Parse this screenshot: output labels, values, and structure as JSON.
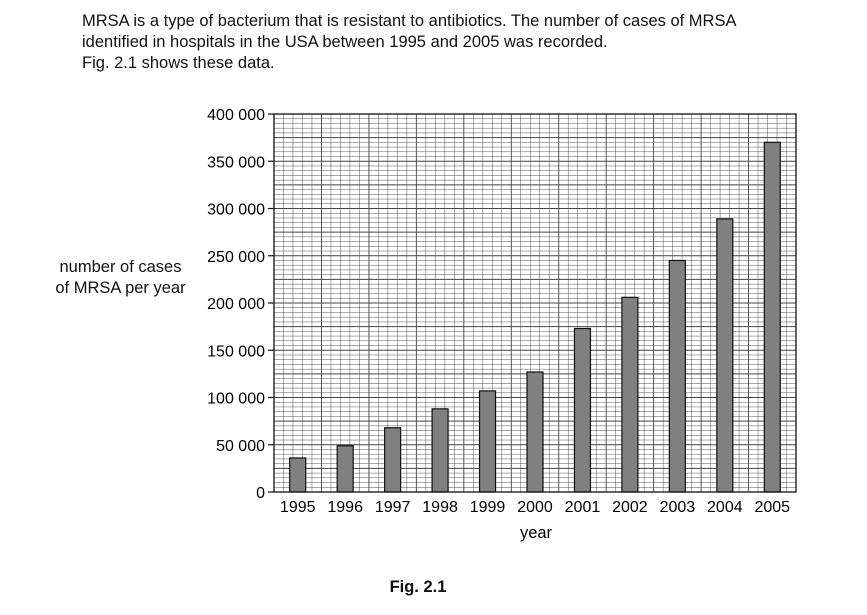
{
  "intro": {
    "line1": "MRSA is a type of bacterium that is resistant to antibiotics. The number of cases of MRSA",
    "line2": "identified in hospitals in the USA between 1995 and 2005 was recorded.",
    "line3": "Fig. 2.1 shows these data."
  },
  "figure_caption": "Fig. 2.1",
  "chart_data": {
    "type": "bar",
    "xlabel": "year",
    "ylabel_line1": "number of cases",
    "ylabel_line2": "of MRSA per year",
    "categories": [
      "1995",
      "1996",
      "1997",
      "1998",
      "1999",
      "2000",
      "2001",
      "2002",
      "2003",
      "2004",
      "2005"
    ],
    "values": [
      36000,
      49000,
      68000,
      88000,
      107000,
      127000,
      173000,
      206000,
      245000,
      289000,
      370000
    ],
    "ylim": [
      0,
      400000
    ],
    "y_ticks": [
      0,
      50000,
      100000,
      150000,
      200000,
      250000,
      300000,
      350000,
      400000
    ],
    "y_tick_labels": [
      "0",
      "50 000",
      "100 000",
      "150 000",
      "200 000",
      "250 000",
      "300 000",
      "350 000",
      "400 000"
    ],
    "grid": true,
    "bar_color": "#808080"
  }
}
